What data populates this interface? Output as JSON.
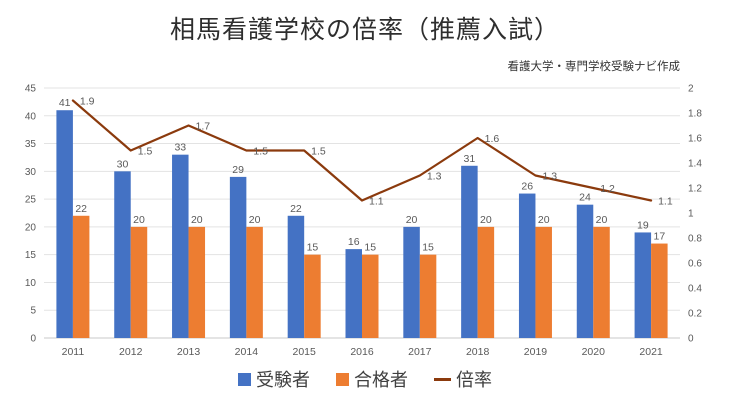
{
  "title": "相馬看護学校の倍率（推薦入試）",
  "subtitle": "看護大学・専門学校受験ナビ作成",
  "colors": {
    "examinees_bar": "#4472C4",
    "passers_bar": "#ED7D31",
    "ratio_line": "#8B3A0D",
    "axis_text": "#595959",
    "gridline": "#E3E3E3",
    "axis_line": "#C9C9C9",
    "data_label": "#595959",
    "legend_text": "#404040"
  },
  "chart_data": {
    "type": "bar",
    "subtype": "combo-bar-line",
    "title": "相馬看護学校の倍率（推薦入試）",
    "categories": [
      "2011",
      "2012",
      "2013",
      "2014",
      "2015",
      "2016",
      "2017",
      "2018",
      "2019",
      "2020",
      "2021"
    ],
    "series": [
      {
        "name": "受験者",
        "chart_type": "bar",
        "axis": "left",
        "color": "#4472C4",
        "values": [
          41,
          30,
          33,
          29,
          22,
          16,
          20,
          31,
          26,
          24,
          19
        ]
      },
      {
        "name": "合格者",
        "chart_type": "bar",
        "axis": "left",
        "color": "#ED7D31",
        "values": [
          22,
          20,
          20,
          20,
          15,
          15,
          15,
          20,
          20,
          20,
          17
        ]
      },
      {
        "name": "倍率",
        "chart_type": "line",
        "axis": "right",
        "color": "#8B3A0D",
        "values": [
          1.9,
          1.5,
          1.7,
          1.5,
          1.5,
          1.1,
          1.3,
          1.6,
          1.3,
          1.2,
          1.1
        ]
      }
    ],
    "left_axis": {
      "min": 0,
      "max": 45,
      "step": 5,
      "labels": [
        "0",
        "5",
        "10",
        "15",
        "20",
        "25",
        "30",
        "35",
        "40",
        "45"
      ]
    },
    "right_axis": {
      "min": 0,
      "max": 2,
      "step": 0.2,
      "labels": [
        "0",
        "0.2",
        "0.4",
        "0.6",
        "0.8",
        "1",
        "1.2",
        "1.4",
        "1.6",
        "1.8",
        "2"
      ]
    },
    "grid": true,
    "data_labels": true,
    "legend_position": "bottom"
  }
}
